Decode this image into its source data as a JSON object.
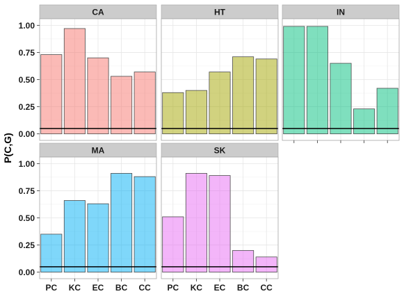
{
  "chart_data": {
    "type": "bar",
    "ylabel": "P(C,G)",
    "xlabel": "",
    "ylim": [
      -0.06,
      1.06
    ],
    "yticks": [
      "0.00",
      "0.25",
      "0.50",
      "0.75",
      "1.00"
    ],
    "ytick_values": [
      0,
      0.25,
      0.5,
      0.75,
      1.0
    ],
    "categories": [
      "PC",
      "KC",
      "EC",
      "BC",
      "CC"
    ],
    "reference_line": 0.05,
    "grid": true,
    "legend": "none",
    "panels": [
      {
        "name": "CA",
        "color": "#F8766D",
        "values": [
          0.73,
          0.97,
          0.7,
          0.53,
          0.57
        ]
      },
      {
        "name": "HT",
        "color": "#A3A500",
        "values": [
          0.38,
          0.4,
          0.57,
          0.71,
          0.69
        ]
      },
      {
        "name": "IN",
        "color": "#00BF7D",
        "values": [
          0.99,
          0.99,
          0.65,
          0.23,
          0.42
        ]
      },
      {
        "name": "MA",
        "color": "#00B0F6",
        "values": [
          0.35,
          0.66,
          0.63,
          0.91,
          0.88
        ]
      },
      {
        "name": "SK",
        "color": "#E76BF3",
        "values": [
          0.51,
          0.91,
          0.89,
          0.2,
          0.14
        ]
      }
    ]
  }
}
